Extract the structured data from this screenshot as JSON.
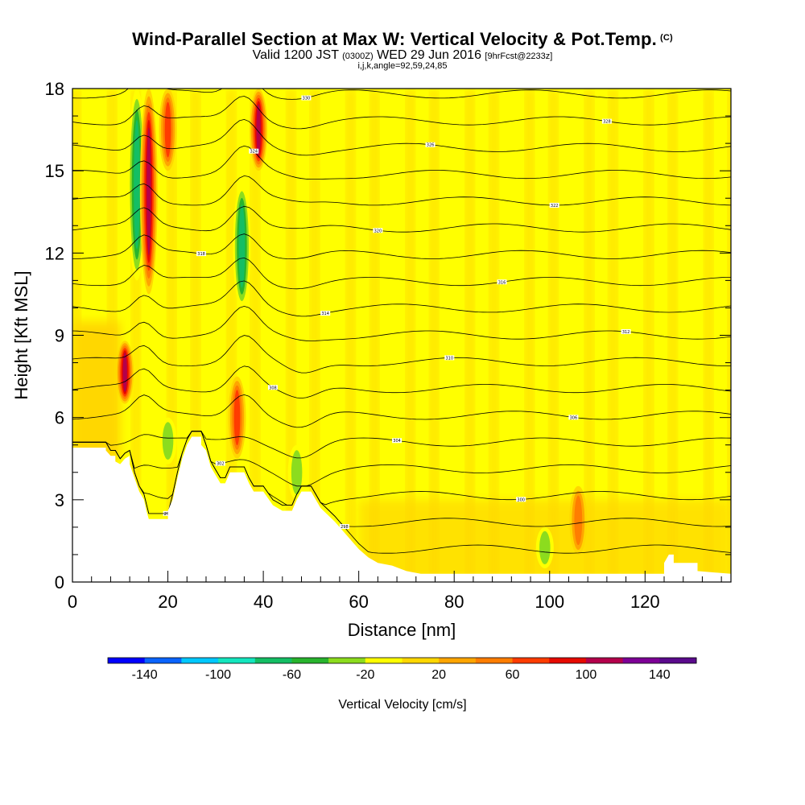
{
  "header": {
    "title": "Wind-Parallel Section at Max W: Vertical Velocity & Pot.Temp.",
    "copyright": "(C)",
    "valid_prefix": "Valid 1200 JST",
    "valid_z": "(0300Z)",
    "valid_date": "WED 29 Jun 2016",
    "forecast": "[9hrFcst@2233z]",
    "params": "i,j,k,angle=92,59,24,85"
  },
  "chart_data": {
    "type": "heatmap",
    "title": "Wind-Parallel Section at Max W: Vertical Velocity & Pot.Temp.",
    "xlabel": "Distance [nm]",
    "ylabel": "Height [Kft MSL]",
    "xlim": [
      0,
      138
    ],
    "ylim": [
      0,
      18
    ],
    "x_ticks": [
      0,
      20,
      40,
      60,
      80,
      100,
      120
    ],
    "y_ticks": [
      0,
      3,
      6,
      9,
      12,
      15,
      18
    ],
    "grid": false,
    "terrain_kft": [
      [
        0,
        4.9
      ],
      [
        7,
        4.9
      ],
      [
        7,
        4.8
      ],
      [
        8,
        4.6
      ],
      [
        9,
        4.6
      ],
      [
        9,
        4.4
      ],
      [
        10,
        4.3
      ],
      [
        11,
        4.5
      ],
      [
        12,
        4.6
      ],
      [
        12,
        4.3
      ],
      [
        13,
        3.8
      ],
      [
        14,
        3.3
      ],
      [
        15,
        3.0
      ],
      [
        15.5,
        2.6
      ],
      [
        16,
        2.3
      ],
      [
        20,
        2.3
      ],
      [
        20,
        2.6
      ],
      [
        21,
        3.0
      ],
      [
        22,
        3.8
      ],
      [
        23,
        4.5
      ],
      [
        24,
        5.0
      ],
      [
        25,
        5.3
      ],
      [
        27,
        5.3
      ],
      [
        27,
        5.0
      ],
      [
        28,
        4.8
      ],
      [
        29,
        4.2
      ],
      [
        30,
        3.9
      ],
      [
        31,
        3.6
      ],
      [
        32,
        3.6
      ],
      [
        33,
        4.0
      ],
      [
        36,
        4.0
      ],
      [
        37,
        3.6
      ],
      [
        38,
        3.3
      ],
      [
        40,
        3.3
      ],
      [
        42,
        2.8
      ],
      [
        44,
        2.6
      ],
      [
        46,
        2.6
      ],
      [
        47,
        3.0
      ],
      [
        48,
        3.3
      ],
      [
        50,
        3.3
      ],
      [
        52,
        2.7
      ],
      [
        55,
        2.2
      ],
      [
        58,
        1.6
      ],
      [
        60,
        1.2
      ],
      [
        62,
        0.9
      ],
      [
        64,
        0.7
      ],
      [
        67,
        0.6
      ],
      [
        70,
        0.4
      ],
      [
        73,
        0.3
      ],
      [
        124,
        0.3
      ],
      [
        124,
        0.7
      ],
      [
        125,
        1.0
      ],
      [
        126,
        1.0
      ],
      [
        126,
        0.7
      ],
      [
        131,
        0.7
      ],
      [
        131,
        0.4
      ],
      [
        138,
        0.3
      ]
    ],
    "vertical_velocity": {
      "name": "Vertical Velocity [cm/s]",
      "colorbar_ticks": [
        -140,
        -100,
        -60,
        -20,
        20,
        60,
        100,
        140
      ],
      "colorbar_min": -160,
      "colorbar_max": 160,
      "colorbar_step": 20,
      "colorbar_colors": [
        "#0000ff",
        "#0a64ff",
        "#00c8ff",
        "#14e6be",
        "#14be64",
        "#28b42d",
        "#8cdc1e",
        "#ffff00",
        "#ffd700",
        "#ffa500",
        "#ff7d00",
        "#ff3c00",
        "#e60a00",
        "#b4004b",
        "#7d0096",
        "#5a0a8c"
      ],
      "features": [
        {
          "x": 13.5,
          "z_range": [
            11.0,
            18.0
          ],
          "w": -80
        },
        {
          "x": 16.0,
          "z_range": [
            10.5,
            18.0
          ],
          "w": 110
        },
        {
          "x": 11.0,
          "z_range": [
            6.5,
            8.8
          ],
          "w": 110
        },
        {
          "x": 20.0,
          "z_range": [
            15.0,
            18.0
          ],
          "w": 80
        },
        {
          "x": 35.5,
          "z_range": [
            10.0,
            14.5
          ],
          "w": -80
        },
        {
          "x": 39.0,
          "z_range": [
            15.0,
            18.0
          ],
          "w": 120
        },
        {
          "x": 34.5,
          "z_range": [
            4.5,
            7.5
          ],
          "w": 70
        },
        {
          "x": 20.0,
          "z_range": [
            4.3,
            6.0
          ],
          "w": -40
        },
        {
          "x": 47.0,
          "z_range": [
            3.0,
            5.0
          ],
          "w": -40
        },
        {
          "x": 99.0,
          "z_range": [
            0.5,
            2.0
          ],
          "w": -40
        },
        {
          "x": 106.0,
          "z_range": [
            1.0,
            3.5
          ],
          "w": 60
        }
      ]
    },
    "potential_temperature": {
      "name": "Pot.Temp.",
      "contour_labels": [
        "296",
        "298",
        "300",
        "302",
        "304",
        "306",
        "308",
        "310",
        "312",
        "314",
        "316",
        "318",
        "320",
        "322",
        "324",
        "326",
        "328",
        "330"
      ]
    }
  }
}
